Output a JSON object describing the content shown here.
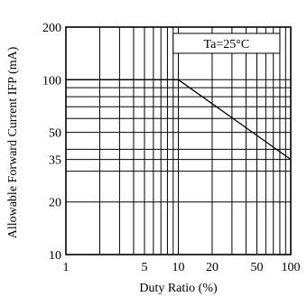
{
  "chart_data": {
    "type": "line",
    "title": "",
    "xlabel": "Duty Ratio (%)",
    "ylabel": "Allowable Forward Current IFP (mA)",
    "xscale": "log",
    "yscale": "log",
    "xlim": [
      1,
      100
    ],
    "ylim": [
      10,
      200
    ],
    "x_ticks": [
      1,
      5,
      10,
      20,
      50,
      100
    ],
    "x_tick_labels": [
      "1",
      "5",
      "10",
      "20",
      "50",
      "100"
    ],
    "x_gridlines": [
      1,
      2,
      3,
      4,
      5,
      6,
      7,
      8,
      9,
      10,
      20,
      30,
      40,
      50,
      60,
      70,
      80,
      90,
      100
    ],
    "y_ticks": [
      10,
      20,
      35,
      50,
      100,
      200
    ],
    "y_tick_labels": [
      "10",
      "20",
      "35",
      "50",
      "100",
      "200"
    ],
    "y_gridlines": [
      10,
      20,
      30,
      35,
      40,
      50,
      60,
      70,
      80,
      90,
      100,
      200
    ],
    "grid": true,
    "annotation": "Ta=25°C",
    "series": [
      {
        "x": [
          1,
          10,
          100
        ],
        "y": [
          100,
          100,
          35
        ]
      }
    ]
  }
}
